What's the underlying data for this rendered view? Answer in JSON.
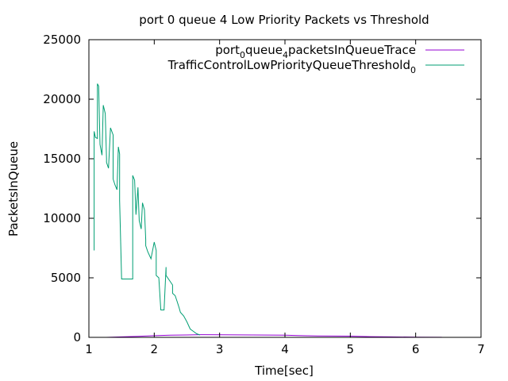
{
  "chart_data": {
    "type": "line",
    "title": "port 0 queue 4 Low Priority Packets vs Threshold",
    "xlabel": "Time[sec]",
    "ylabel": "PacketsInQueue",
    "xlim": [
      1,
      7
    ],
    "ylim": [
      0,
      25000
    ],
    "xticks": [
      1,
      2,
      3,
      4,
      5,
      6,
      7
    ],
    "yticks": [
      0,
      5000,
      10000,
      15000,
      20000,
      25000
    ],
    "grid": false,
    "legend_position": "top-right",
    "series": [
      {
        "name_parts": [
          {
            "t": "port",
            "sub": false
          },
          {
            "t": "0",
            "sub": true
          },
          {
            "t": "queue",
            "sub": false
          },
          {
            "t": "4",
            "sub": true
          },
          {
            "t": "packetsInQueueTrace",
            "sub": false
          }
        ],
        "color": "#9400d3",
        "x": [
          1.27,
          1.5,
          1.75,
          2.0,
          2.25,
          2.5,
          2.72,
          3.0,
          3.5,
          4.0,
          4.2,
          4.5,
          5.0,
          5.3,
          5.6,
          6.0,
          6.4
        ],
        "y": [
          0,
          40,
          80,
          140,
          180,
          200,
          230,
          220,
          200,
          180,
          150,
          120,
          100,
          60,
          40,
          20,
          10
        ]
      },
      {
        "name_parts": [
          {
            "t": "TrafficControlLowPriorityQueueThreshold",
            "sub": false
          },
          {
            "t": "0",
            "sub": true
          }
        ],
        "color": "#009e73",
        "x": [
          1.08,
          1.08,
          1.1,
          1.13,
          1.13,
          1.15,
          1.17,
          1.18,
          1.2,
          1.22,
          1.25,
          1.27,
          1.27,
          1.3,
          1.33,
          1.37,
          1.37,
          1.4,
          1.43,
          1.45,
          1.47,
          1.47,
          1.5,
          1.55,
          1.55,
          1.67,
          1.67,
          1.7,
          1.72,
          1.75,
          1.77,
          1.8,
          1.82,
          1.85,
          1.87,
          1.87,
          1.9,
          1.95,
          2.0,
          2.03,
          2.03,
          2.07,
          2.1,
          2.12,
          2.15,
          2.18,
          2.18,
          2.28,
          2.28,
          2.32,
          2.35,
          2.38,
          2.4,
          2.45,
          2.5,
          2.55,
          2.6,
          2.65,
          2.7
        ],
        "y": [
          7300,
          17300,
          16800,
          16700,
          21300,
          21100,
          16200,
          15900,
          15300,
          19500,
          18800,
          15000,
          14700,
          14200,
          17600,
          17000,
          13300,
          12800,
          12400,
          16000,
          15400,
          11500,
          4900,
          4900,
          4900,
          4900,
          13600,
          13200,
          10300,
          12600,
          9800,
          9100,
          11300,
          10700,
          8200,
          7700,
          7200,
          6600,
          8000,
          7300,
          5200,
          5000,
          2300,
          2300,
          2300,
          5900,
          5200,
          4400,
          3700,
          3500,
          3000,
          2500,
          2100,
          1800,
          1300,
          700,
          500,
          300,
          200
        ]
      }
    ]
  }
}
